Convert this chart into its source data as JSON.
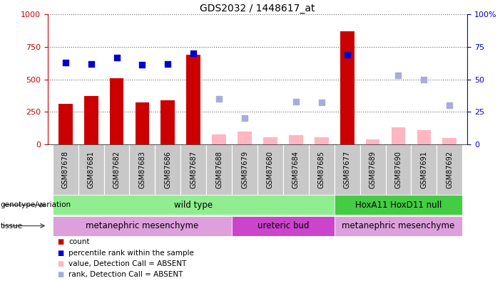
{
  "title": "GDS2032 / 1448617_at",
  "samples": [
    "GSM87678",
    "GSM87681",
    "GSM87682",
    "GSM87683",
    "GSM87686",
    "GSM87687",
    "GSM87688",
    "GSM87679",
    "GSM87680",
    "GSM87684",
    "GSM87685",
    "GSM87677",
    "GSM87689",
    "GSM87690",
    "GSM87691",
    "GSM87692"
  ],
  "count": [
    310,
    370,
    510,
    325,
    340,
    690,
    null,
    null,
    null,
    null,
    null,
    870,
    null,
    null,
    null,
    null
  ],
  "count_absent": [
    null,
    null,
    null,
    null,
    null,
    null,
    75,
    100,
    55,
    70,
    55,
    null,
    40,
    130,
    110,
    50
  ],
  "percentile_rank": [
    63,
    62,
    67,
    61,
    62,
    70,
    null,
    null,
    null,
    null,
    null,
    69,
    null,
    null,
    null,
    null
  ],
  "percentile_rank_absent": [
    null,
    null,
    null,
    null,
    null,
    null,
    35,
    20,
    null,
    33,
    32,
    null,
    null,
    53,
    50,
    30
  ],
  "is_absent": [
    false,
    false,
    false,
    false,
    false,
    false,
    true,
    true,
    true,
    true,
    true,
    false,
    true,
    true,
    true,
    true
  ],
  "genotype_groups": [
    {
      "label": "wild type",
      "start": 0,
      "end": 11,
      "color": "#90EE90"
    },
    {
      "label": "HoxA11 HoxD11 null",
      "start": 11,
      "end": 16,
      "color": "#44CC44"
    }
  ],
  "tissue_groups": [
    {
      "label": "metanephric mesenchyme",
      "start": 0,
      "end": 7,
      "color": "#DDA0DD"
    },
    {
      "label": "ureteric bud",
      "start": 7,
      "end": 11,
      "color": "#CC44CC"
    },
    {
      "label": "metanephric mesenchyme",
      "start": 11,
      "end": 16,
      "color": "#DDA0DD"
    }
  ],
  "bar_color_present": "#CC0000",
  "bar_color_absent": "#FFB6C1",
  "dot_color_present": "#0000CC",
  "dot_color_absent": "#AAAADD",
  "ylim_left": [
    0,
    1000
  ],
  "ylim_right": [
    0,
    100
  ],
  "bar_width": 0.55,
  "dot_size": 35,
  "label_color_geno": "#006600",
  "label_color_tissue_bright": "#990099"
}
